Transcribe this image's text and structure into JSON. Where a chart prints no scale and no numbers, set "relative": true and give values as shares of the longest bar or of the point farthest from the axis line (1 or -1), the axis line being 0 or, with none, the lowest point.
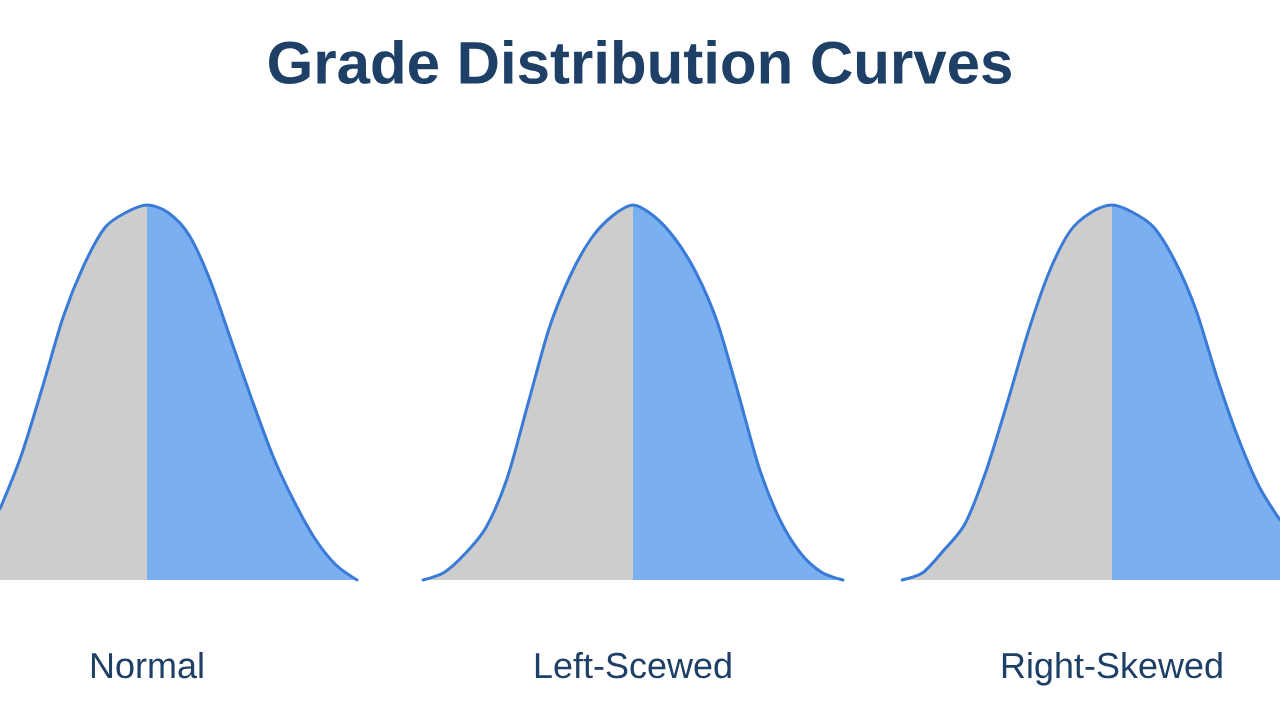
{
  "chart_data": [
    {
      "type": "area",
      "relative": true,
      "title": "Grade Distribution Curves",
      "xlabel": "Normal",
      "categories": [
        null,
        null,
        null,
        null,
        null,
        null,
        null,
        null,
        null,
        null,
        null,
        null,
        null,
        null,
        null,
        null,
        null,
        null
      ],
      "series": [
        {
          "color": "#cdcdcd",
          "values": [
            0.19,
            0.33,
            0.51,
            0.7,
            0.84,
            0.94,
            0.98,
            1.0,
            null,
            null,
            null,
            null,
            null,
            null,
            null,
            null,
            null,
            null
          ]
        },
        {
          "color": "#7aaff0",
          "values": [
            null,
            null,
            null,
            null,
            null,
            null,
            null,
            1.0,
            0.98,
            0.92,
            0.8,
            0.64,
            0.48,
            0.33,
            0.21,
            0.11,
            0.04,
            0
          ]
        },
        {
          "type": "line",
          "color": "#3a7bd8",
          "values": [
            0.19,
            0.33,
            0.51,
            0.7,
            0.84,
            0.94,
            0.98,
            1.0,
            0.98,
            0.92,
            0.8,
            0.64,
            0.48,
            0.33,
            0.21,
            0.11,
            0.04,
            0
          ]
        }
      ]
    },
    {
      "type": "area",
      "relative": true,
      "xlabel": "Left-Scewed",
      "categories": [
        null,
        null,
        null,
        null,
        null,
        null,
        null,
        null,
        null,
        null,
        null,
        null,
        null,
        null,
        null,
        null,
        null,
        null,
        null,
        null,
        null
      ],
      "series": [
        {
          "color": "#cdcdcd",
          "values": [
            0,
            0.02,
            0.07,
            0.14,
            0.27,
            0.47,
            0.67,
            0.81,
            0.91,
            0.97,
            1.0,
            null,
            null,
            null,
            null,
            null,
            null,
            null,
            null,
            null,
            null
          ]
        },
        {
          "color": "#7aaff0",
          "values": [
            null,
            null,
            null,
            null,
            null,
            null,
            null,
            null,
            null,
            null,
            1.0,
            0.97,
            0.91,
            0.82,
            0.69,
            0.5,
            0.3,
            0.16,
            0.07,
            0.02,
            0
          ]
        },
        {
          "type": "line",
          "color": "#3a7bd8",
          "values": [
            0,
            0.02,
            0.07,
            0.14,
            0.27,
            0.47,
            0.67,
            0.81,
            0.91,
            0.97,
            1.0,
            0.97,
            0.91,
            0.82,
            0.69,
            0.5,
            0.3,
            0.16,
            0.07,
            0.02,
            0
          ]
        }
      ]
    },
    {
      "type": "area",
      "relative": true,
      "xlabel": "Right-Skewed",
      "categories": [
        null,
        null,
        null,
        null,
        null,
        null,
        null,
        null,
        null,
        null,
        null,
        null,
        null,
        null,
        null,
        null,
        null,
        null,
        null
      ],
      "series": [
        {
          "color": "#cdcdcd",
          "values": [
            0,
            0.02,
            0.08,
            0.15,
            0.29,
            0.47,
            0.66,
            0.82,
            0.93,
            0.98,
            1.0,
            null,
            null,
            null,
            null,
            null,
            null,
            null,
            null
          ]
        },
        {
          "color": "#7aaff0",
          "values": [
            null,
            null,
            null,
            null,
            null,
            null,
            null,
            null,
            null,
            null,
            1.0,
            0.98,
            0.94,
            0.85,
            0.72,
            0.54,
            0.38,
            0.25,
            0.16
          ]
        },
        {
          "type": "line",
          "color": "#3a7bd8",
          "values": [
            0,
            0.02,
            0.08,
            0.15,
            0.29,
            0.47,
            0.66,
            0.82,
            0.93,
            0.98,
            1.0,
            0.98,
            0.94,
            0.85,
            0.72,
            0.54,
            0.38,
            0.25,
            0.16
          ]
        }
      ]
    }
  ]
}
